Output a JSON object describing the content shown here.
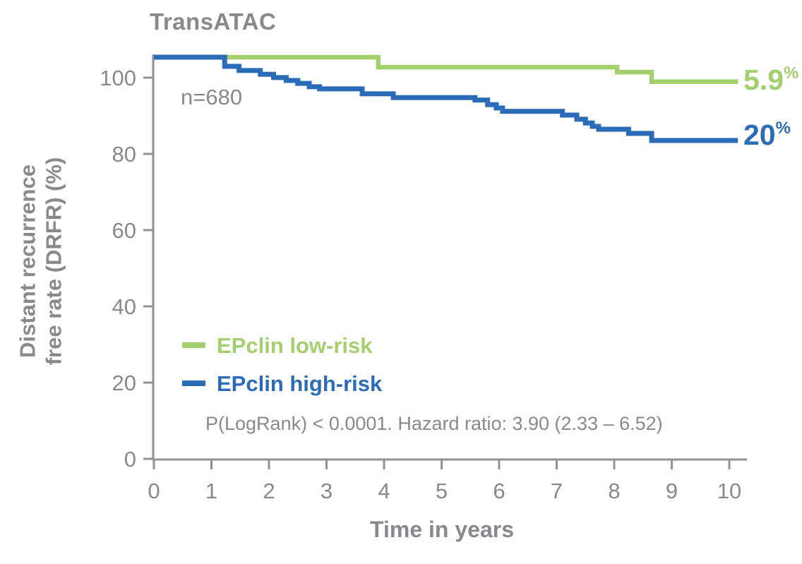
{
  "figure": {
    "title": "TransATAC",
    "n_label": "n=680",
    "stats_line": "P(LogRank) < 0.0001. Hazard ratio: 3.90 (2.33 – 6.52)",
    "x_axis_title": "Time in years",
    "y_axis_title": "Distant recurrence\nfree rate (DRFR) (%)",
    "legend": [
      {
        "label": "EPclin low-risk"
      },
      {
        "label": "EPclin high-risk"
      }
    ],
    "end_labels": {
      "low_risk_value": "5.9",
      "low_risk_unit": "%",
      "high_risk_value": "20",
      "high_risk_unit": "%"
    }
  },
  "colors": {
    "low_risk_green": "#a4cf6e",
    "high_risk_blue": "#2b6cb8",
    "text_gray": "#87898c",
    "axis_gray": "#909295",
    "background": "#ffffff"
  },
  "chart_data": {
    "type": "line",
    "variant": "kaplan-meier-step",
    "title": "TransATAC",
    "xlabel": "Time in years",
    "ylabel": "Distant recurrence free rate (DRFR) (%)",
    "n": 680,
    "xlim": [
      0,
      10.3
    ],
    "ylim": [
      0,
      105
    ],
    "x_ticks": [
      0,
      1,
      2,
      3,
      4,
      5,
      6,
      7,
      8,
      9,
      10
    ],
    "y_ticks": [
      0,
      20,
      40,
      60,
      80,
      100
    ],
    "grid": false,
    "legend_position": "inside-lower-left",
    "annotations": [
      "n=680",
      "P(LogRank) < 0.0001. Hazard ratio: 3.90 (2.33 – 6.52)"
    ],
    "layout_hints": {
      "curves_drawn_from_axis_top": true,
      "curve_start_offset_units_above_100": 5.5
    },
    "series": [
      {
        "key": "low-risk",
        "name": "EPclin low-risk",
        "color": "#a4cf6e",
        "end_label": "5.9%",
        "stroke_width": 6.5,
        "points": [
          [
            0,
            100
          ],
          [
            3.9,
            97.6
          ],
          [
            8.05,
            96.4
          ],
          [
            8.65,
            94.1
          ],
          [
            10.15,
            94.1
          ]
        ]
      },
      {
        "key": "high-risk",
        "name": "EPclin high-risk",
        "color": "#2b6cb8",
        "end_label": "20%",
        "stroke_width": 7,
        "points": [
          [
            0,
            100
          ],
          [
            1.23,
            97.8
          ],
          [
            1.48,
            96.8
          ],
          [
            1.85,
            95.9
          ],
          [
            2.08,
            95.1
          ],
          [
            2.3,
            94.4
          ],
          [
            2.5,
            93.7
          ],
          [
            2.7,
            92.9
          ],
          [
            2.88,
            92.4
          ],
          [
            3.62,
            91.2
          ],
          [
            4.16,
            90.3
          ],
          [
            5.58,
            89.7
          ],
          [
            5.8,
            88.6
          ],
          [
            5.95,
            87.8
          ],
          [
            6.06,
            87.0
          ],
          [
            7.1,
            86.1
          ],
          [
            7.35,
            85.1
          ],
          [
            7.5,
            84.2
          ],
          [
            7.62,
            83.4
          ],
          [
            7.73,
            82.7
          ],
          [
            8.25,
            81.7
          ],
          [
            8.65,
            80.0
          ],
          [
            10.15,
            80.0
          ]
        ]
      }
    ]
  }
}
